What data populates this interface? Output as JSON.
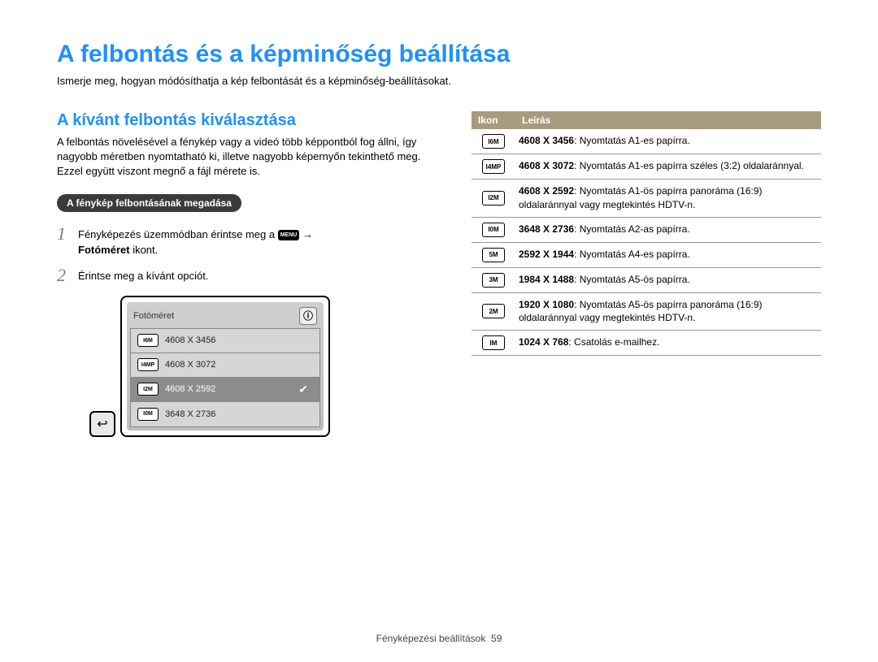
{
  "title": "A felbontás és a képminőség beállítása",
  "intro": "Ismerje meg, hogyan módósíthatja a kép felbontását és a képminőség-beállításokat.",
  "left": {
    "heading": "A kívánt felbontás kiválasztása",
    "body": "A felbontás növelésével a fénykép vagy a videó több képpontból fog állni, így nagyobb méretben nyomtatható ki, illetve nagyobb képernyőn tekinthető meg. Ezzel együtt viszont megnő a fájl mérete is.",
    "pill": "A fénykép felbontásának megadása",
    "steps": {
      "s1_pre": "Fényképezés üzemmódban érintse meg a ",
      "s1_menu": "MENU",
      "s1_arrow": " → ",
      "s1_bold": "Fotóméret",
      "s1_post": " ikont.",
      "s2": "Érintse meg a kívánt opciót."
    },
    "mock": {
      "title": "Fotóméret",
      "info": "ⓘ",
      "back": "↩",
      "check": "✔",
      "items": [
        {
          "icon": "I6M",
          "label": "4608 X 3456",
          "selected": false
        },
        {
          "icon": "I4MP",
          "label": "4608 X 3072",
          "selected": false
        },
        {
          "icon": "I2M",
          "label": "4608 X 2592",
          "selected": true
        },
        {
          "icon": "I0M",
          "label": "3648 X 2736",
          "selected": false
        }
      ]
    }
  },
  "right": {
    "header_icon": "Ikon",
    "header_desc": "Leírás",
    "rows": [
      {
        "icon": "I6M",
        "bold": "4608 X 3456",
        "text": ": Nyomtatás A1-es papírra."
      },
      {
        "icon": "I4MP",
        "bold": "4608 X 3072",
        "text": ": Nyomtatás A1-es papírra széles (3:2) oldalaránnyal."
      },
      {
        "icon": "I2M",
        "bold": "4608 X 2592",
        "text": ": Nyomtatás A1-ös papírra panoráma (16:9) oldalaránnyal vagy megtekintés HDTV-n."
      },
      {
        "icon": "I0M",
        "bold": "3648 X 2736",
        "text": ": Nyomtatás A2-as papírra."
      },
      {
        "icon": "5M",
        "bold": "2592 X 1944",
        "text": ": Nyomtatás A4-es papírra."
      },
      {
        "icon": "3M",
        "bold": "1984 X 1488",
        "text": ": Nyomtatás A5-ös papírra."
      },
      {
        "icon": "2M",
        "bold": "1920 X 1080",
        "text": ": Nyomtatás A5-ös papírra panoráma (16:9) oldalaránnyal vagy megtekintés HDTV-n."
      },
      {
        "icon": "IM",
        "bold": "1024 X 768",
        "text": ": Csatolás e-mailhez."
      }
    ]
  },
  "footer": {
    "label": "Fényképezési beállítások",
    "page": "59"
  }
}
